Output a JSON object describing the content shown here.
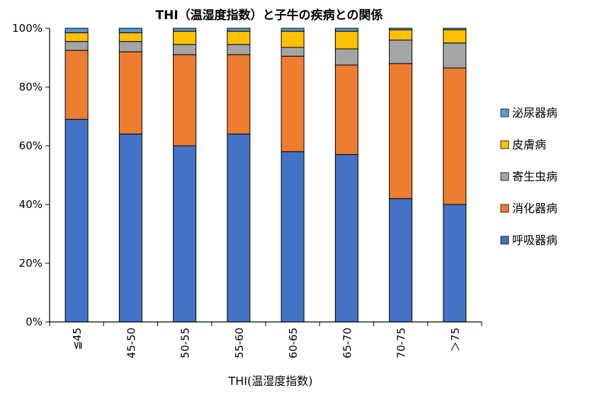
{
  "chart_data": {
    "type": "bar",
    "stacked": true,
    "title": "THI（温湿度指数）と子牛の疾病との関係",
    "xlabel": "THI(温湿度指数)",
    "ylabel": "",
    "ylim": [
      0,
      100
    ],
    "yticks": [
      "0%",
      "20%",
      "40%",
      "60%",
      "80%",
      "100%"
    ],
    "categories": [
      "≦45",
      "45-50",
      "50-55",
      "55-60",
      "60-65",
      "65-70",
      "70-75",
      "＞75"
    ],
    "legend_position": "right",
    "series": [
      {
        "name": "呼吸器病",
        "color": "#4472C4",
        "values": [
          69,
          64,
          60,
          64,
          58,
          57,
          42,
          40
        ]
      },
      {
        "name": "消化器病",
        "color": "#ED7D31",
        "values": [
          23.5,
          28,
          31,
          27,
          32.5,
          30.5,
          46,
          46.5
        ]
      },
      {
        "name": "寄生虫病",
        "color": "#A5A5A5",
        "values": [
          3,
          3.5,
          3.5,
          3.5,
          3,
          5.5,
          8,
          8.5
        ]
      },
      {
        "name": "皮膚病",
        "color": "#FFC000",
        "values": [
          3,
          3,
          4.5,
          4.5,
          5.5,
          6,
          3.5,
          4.5
        ]
      },
      {
        "name": "泌尿器病",
        "color": "#5B9BD5",
        "values": [
          1.5,
          1.5,
          1,
          1,
          1,
          1,
          0.5,
          0.5
        ]
      }
    ]
  }
}
